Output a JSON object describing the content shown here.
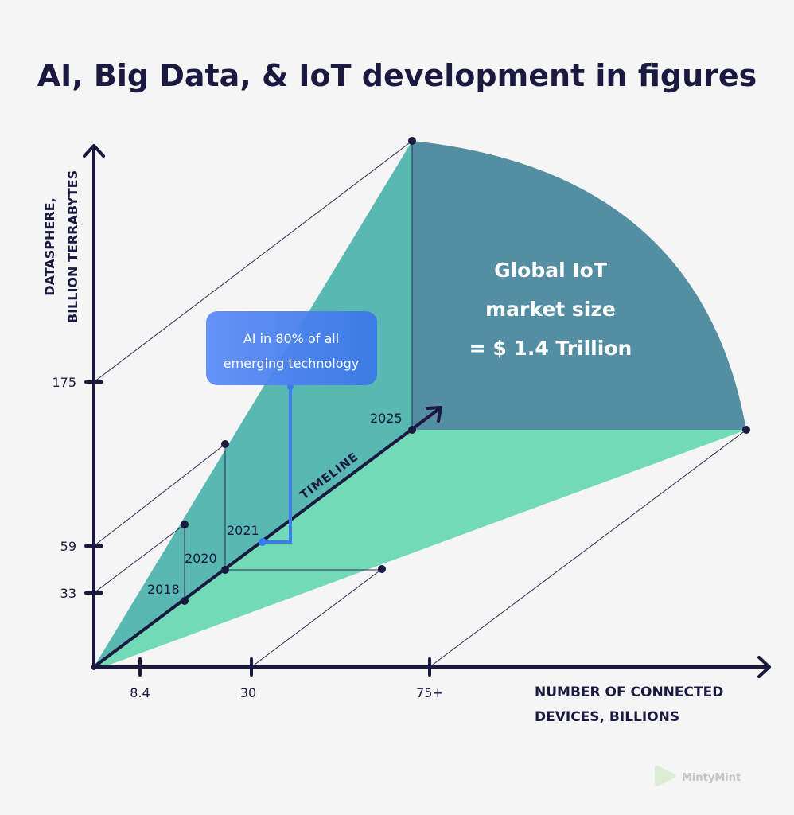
{
  "title": "AI, Big Data, & IoT development in figures",
  "y_axis": {
    "label_line1": "DATASPHERE,",
    "label_line2": "BILLION TERRABYTES",
    "ticks": [
      "175",
      "59",
      "33"
    ]
  },
  "x_axis": {
    "label_line1": "NUMBER OF CONNECTED",
    "label_line2": "DEVICES, BILLIONS",
    "ticks": [
      "8.4",
      "30",
      "75+"
    ]
  },
  "timeline": {
    "label": "TIMELINE",
    "years": [
      "2018",
      "2020",
      "2021",
      "2025"
    ]
  },
  "callout": {
    "line1": "AI in 80% of all",
    "line2": "emerging technology"
  },
  "market": {
    "line1": "Global IoT",
    "line2": "market size",
    "line3": "= $ 1.4 Trillion"
  },
  "logo": "MintyMint",
  "colors": {
    "navy": "#1b1940",
    "teal": "#5ab8b3",
    "slate": "#548ea3",
    "green": "#72dab6",
    "blue": "#4a84f0"
  }
}
